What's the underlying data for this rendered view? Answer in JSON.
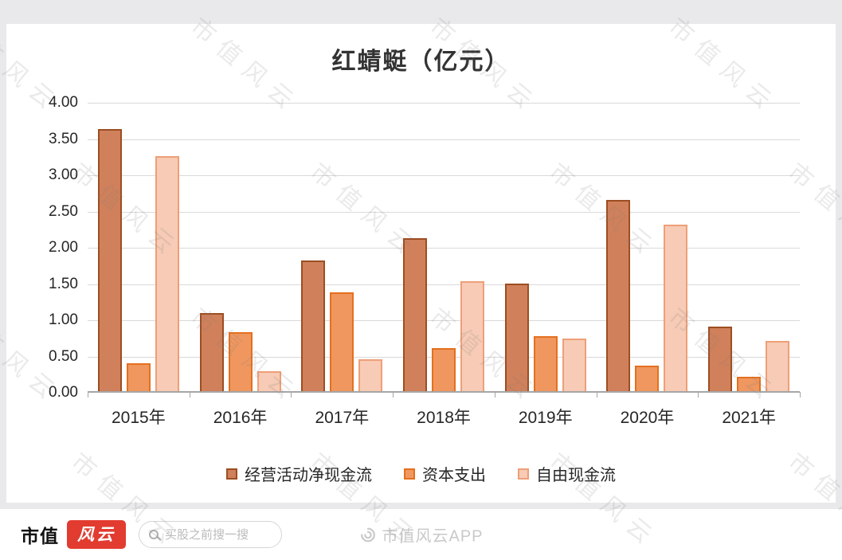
{
  "title": "红蜻蜓（亿元）",
  "chart_data": {
    "type": "bar",
    "title": "红蜻蜓（亿元）",
    "categories": [
      "2015年",
      "2016年",
      "2017年",
      "2018年",
      "2019年",
      "2020年",
      "2021年"
    ],
    "series": [
      {
        "name": "经营活动净现金流",
        "values": [
          3.62,
          1.08,
          1.8,
          2.11,
          1.48,
          2.64,
          0.89
        ],
        "fill": "#D0805A",
        "stroke": "#9C4E22"
      },
      {
        "name": "资本支出",
        "values": [
          0.38,
          0.81,
          1.36,
          0.59,
          0.76,
          0.35,
          0.2
        ],
        "fill": "#F0975F",
        "stroke": "#E4701E"
      },
      {
        "name": "自由现金流",
        "values": [
          3.24,
          0.27,
          0.44,
          1.52,
          0.73,
          2.3,
          0.69
        ],
        "fill": "#F7CBB5",
        "stroke": "#EE9F78"
      }
    ],
    "xlabel": "",
    "ylabel": "",
    "ylim": [
      0,
      4
    ],
    "ytick_step": 0.5,
    "yticks": [
      "4.00",
      "3.50",
      "3.00",
      "2.50",
      "2.00",
      "1.50",
      "1.00",
      "0.50",
      "0.00"
    ],
    "grid": true,
    "legend_position": "bottom"
  },
  "watermark": {
    "text": "市值风云"
  },
  "footer": {
    "brand_text": "市值",
    "brand_logo_text": "风云",
    "search_placeholder": "买股之前搜一搜",
    "watermark_app": "市值风云APP"
  }
}
